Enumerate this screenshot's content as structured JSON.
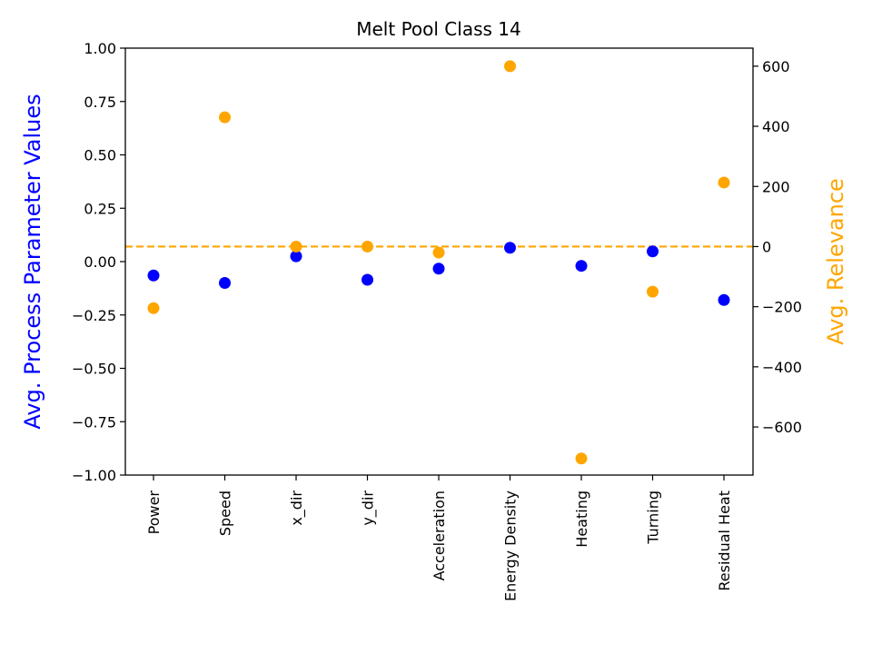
{
  "chart_data": {
    "type": "scatter",
    "title": "Melt Pool Class 14",
    "categories": [
      "Power",
      "Speed",
      "x_dir",
      "y_dir",
      "Acceleration",
      "Energy Density",
      "Heating",
      "Turning",
      "Residual Heat"
    ],
    "left_axis": {
      "label": "Avg. Process Parameter Values",
      "color": "#0000ff",
      "ylim": [
        -1.0,
        1.0
      ],
      "ticks": [
        "1.00",
        "0.75",
        "0.50",
        "0.25",
        "0.00",
        "−0.25",
        "−0.50",
        "−0.75",
        "−1.00"
      ]
    },
    "right_axis": {
      "label": "Avg. Relevance",
      "color": "#ffa500",
      "ylim": [
        -760,
        660
      ],
      "ticks": [
        "600",
        "400",
        "200",
        "0",
        "−200",
        "−400",
        "−600"
      ]
    },
    "series": [
      {
        "axis": "left",
        "color": "#0000ff",
        "values": [
          -0.065,
          -0.1,
          0.025,
          -0.085,
          -0.033,
          0.065,
          -0.02,
          0.048,
          -0.18
        ]
      },
      {
        "axis": "right",
        "color": "#ffa500",
        "values": [
          -205,
          430,
          0,
          0,
          -20,
          600,
          -705,
          -150,
          213
        ]
      }
    ],
    "reference_line": {
      "axis": "right",
      "value": 0,
      "style": "dashed",
      "color": "#ffa500"
    },
    "grid": false,
    "legend": "none"
  }
}
